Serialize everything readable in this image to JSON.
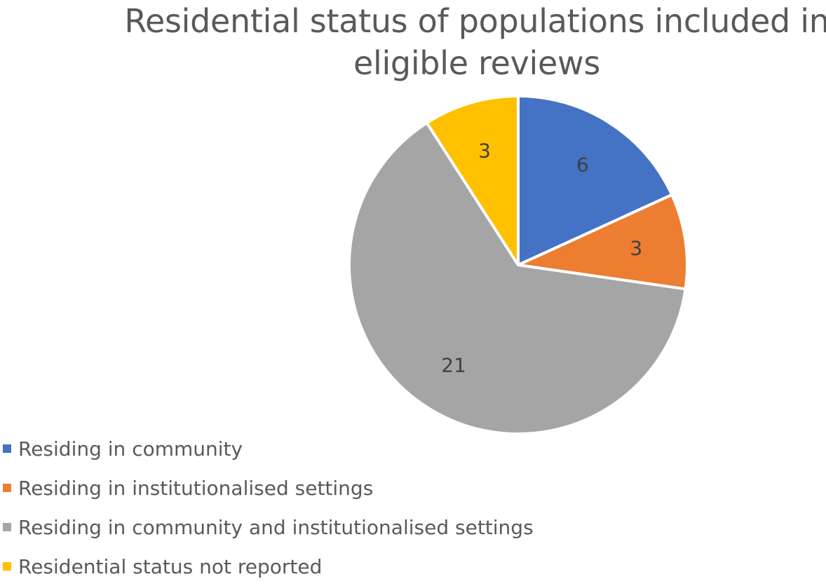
{
  "chart_data": {
    "type": "pie",
    "title": "Residential status of populations included in eligible reviews",
    "title_lines": [
      "Residential status of populations included in",
      "eligible reviews"
    ],
    "start_angle_deg": 0,
    "direction": "clockwise",
    "legend_position": "bottom-left",
    "slices": [
      {
        "label": "Residing in community",
        "value": 6,
        "color": "#4472C4"
      },
      {
        "label": "Residing in institutionalised settings",
        "value": 3,
        "color": "#ED7D31"
      },
      {
        "label": "Residing in community and institutionalised settings",
        "value": 21,
        "color": "#A5A5A5"
      },
      {
        "label": "Residential status not reported",
        "value": 3,
        "color": "#FFC000"
      }
    ]
  }
}
